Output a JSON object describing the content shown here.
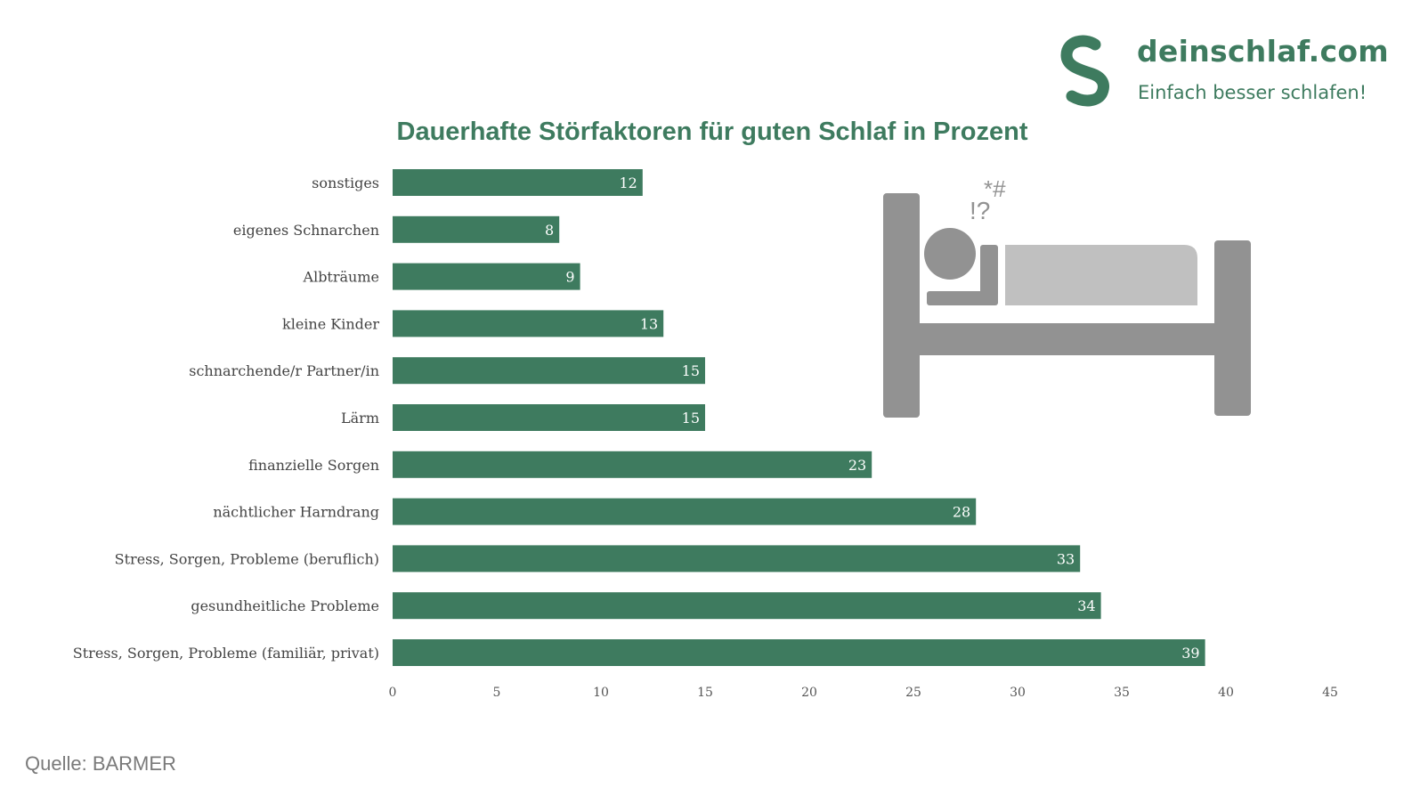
{
  "brand": {
    "name": "deinschlaf.com",
    "tagline": "Einfach besser schlafen!"
  },
  "source": "Quelle: BARMER",
  "illustration": {
    "symbols_top": "*#",
    "symbols_bottom": "!?"
  },
  "colors": {
    "bar": "#3e7b5f",
    "title": "#3e7b5f",
    "bed_dark": "#929292",
    "bed_light": "#c0c0c0"
  },
  "chart_data": {
    "type": "bar",
    "orientation": "horizontal",
    "title": "Dauerhafte Störfaktoren für guten Schlaf in Prozent",
    "categories": [
      "sonstiges",
      "eigenes Schnarchen",
      "Albträume",
      "kleine Kinder",
      "schnarchende/r Partner/in",
      "Lärm",
      "finanzielle Sorgen",
      "nächtlicher Harndrang",
      "Stress, Sorgen, Probleme (beruflich)",
      "gesundheitliche Probleme",
      "Stress, Sorgen, Probleme (familiär, privat)"
    ],
    "values": [
      12,
      8,
      9,
      13,
      15,
      15,
      23,
      28,
      33,
      34,
      39
    ],
    "xlim": [
      0,
      45
    ],
    "xticks": [
      0,
      5,
      10,
      15,
      20,
      25,
      30,
      35,
      40,
      45
    ],
    "data_labels": true,
    "grid": false
  }
}
